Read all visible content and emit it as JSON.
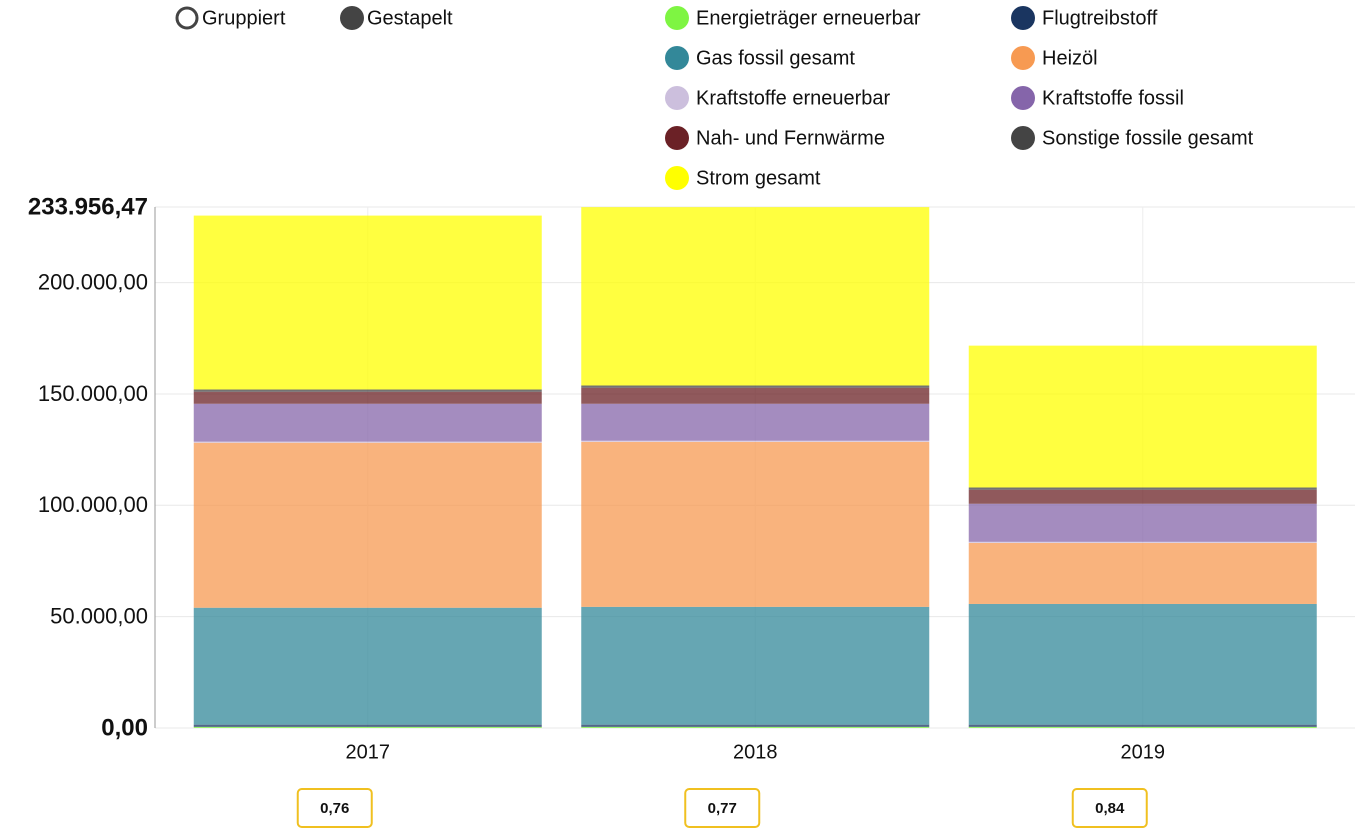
{
  "chart_data": {
    "type": "stacked-bar",
    "modes": [
      "Gruppiert",
      "Gestapelt"
    ],
    "categories": [
      "2017",
      "2018",
      "2019"
    ],
    "series": [
      {
        "name": "Energieträger erneuerbar",
        "color": "#7ef542",
        "values": [
          500,
          500,
          500
        ]
      },
      {
        "name": "Flugtreibstoff",
        "color": "#1a3560",
        "values": [
          1000,
          1000,
          1000
        ]
      },
      {
        "name": "Gas fossil gesamt",
        "color": "#338899",
        "values": [
          52500,
          52900,
          54200
        ]
      },
      {
        "name": "Heizöl",
        "color": "#f79a52",
        "values": [
          74100,
          74100,
          27400
        ]
      },
      {
        "name": "Kraftstoffe erneuerbar",
        "color": "#ccbfdd",
        "values": [
          500,
          500,
          500
        ]
      },
      {
        "name": "Kraftstoffe fossil",
        "color": "#8565aa",
        "values": [
          17000,
          16600,
          17100
        ]
      },
      {
        "name": "Nah- und Fernwärme",
        "color": "#6b2126",
        "values": [
          5400,
          7200,
          6300
        ]
      },
      {
        "name": "Sonstige fossile gesamt",
        "color": "#444444",
        "values": [
          1000,
          1000,
          1000
        ]
      },
      {
        "name": "Strom gesamt",
        "color": "#ffff00",
        "values": [
          78100,
          80100,
          63700
        ]
      }
    ],
    "badges": [
      "0,76",
      "0,77",
      "0,84"
    ],
    "ylim": [
      0,
      233956.47
    ],
    "yticks": [
      {
        "value": 0,
        "label": "0,00"
      },
      {
        "value": 50000,
        "label": "50.000,00"
      },
      {
        "value": 100000,
        "label": "100.000,00"
      },
      {
        "value": 150000,
        "label": "150.000,00"
      },
      {
        "value": 200000,
        "label": "200.000,00"
      },
      {
        "value": 233956.47,
        "label": "233.956,47"
      }
    ],
    "grid": true
  }
}
